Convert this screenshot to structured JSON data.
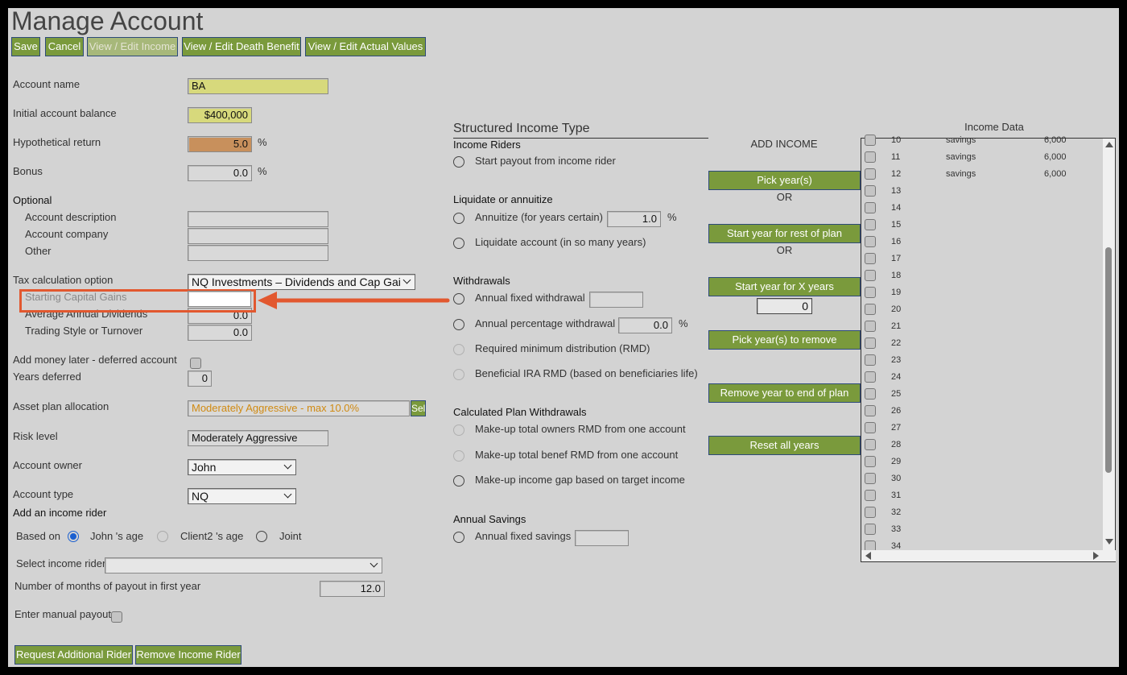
{
  "header": {
    "title": "Manage Account"
  },
  "toolbar": [
    "Save",
    "Cancel",
    "View / Edit Income",
    "View / Edit Death Benefit",
    "View / Edit Actual Values"
  ],
  "account": {
    "fields": [
      {
        "label": "Account name",
        "value": "BA"
      },
      {
        "label": "Initial account balance",
        "value": "$400,000"
      },
      {
        "label": "Hypothetical return",
        "value": "5.0",
        "unit": "%"
      },
      {
        "label": "Bonus",
        "value": "0.0",
        "unit": "%"
      },
      {
        "label": "Optional"
      },
      {
        "label": "Account description"
      },
      {
        "label": "Account company"
      },
      {
        "label": "Other"
      },
      {
        "label": "Tax calculation option",
        "value": "NQ Investments – Dividends and Cap Gai"
      },
      {
        "label": "Starting Capital Gains"
      },
      {
        "label": "Average Annual Dividends",
        "value": "0.0"
      },
      {
        "label": "Trading Style or Turnover",
        "value": "0.0"
      },
      {
        "label": "Add money later - deferred account"
      },
      {
        "label": "Years deferred",
        "value": "0"
      },
      {
        "label": "Asset plan allocation",
        "value": "Moderately Aggressive - max 10.0%",
        "button": "Sel"
      },
      {
        "label": "Risk level",
        "value": "Moderately Aggressive"
      },
      {
        "label": "Account owner",
        "value": "John"
      },
      {
        "label": "Account type",
        "value": "NQ"
      }
    ]
  },
  "income_rider": {
    "title": "Add an income rider",
    "based_on": "Based on",
    "options": [
      "John 's age",
      "Client2 's age",
      "Joint"
    ],
    "select_label": "Select income rider",
    "months_label": "Number of months of payout in first year",
    "months_value": "12.0",
    "manual_label": "Enter manual payout",
    "buttons": [
      "Request Additional Rider",
      "Remove Income Rider"
    ]
  },
  "structured": {
    "title": "Structured Income Type",
    "groups": [
      {
        "heading": "Income Riders",
        "options": [
          {
            "label": "Start payout from income rider"
          }
        ]
      },
      {
        "heading": "Liquidate or annuitize",
        "options": [
          {
            "label": "Annuitize (for years certain)",
            "value": "1.0",
            "unit": "%"
          },
          {
            "label": "Liquidate account (in so many years)"
          }
        ]
      },
      {
        "heading": "Withdrawals",
        "options": [
          {
            "label": "Annual fixed withdrawal"
          },
          {
            "label": "Annual percentage withdrawal",
            "value": "0.0",
            "unit": "%"
          },
          {
            "label": "Required minimum distribution (RMD)"
          },
          {
            "label": "Beneficial IRA RMD (based on beneficiaries life)"
          }
        ]
      },
      {
        "heading": "Calculated Plan Withdrawals",
        "options": [
          {
            "label": "Make-up total owners RMD from one account"
          },
          {
            "label": "Make-up total benef RMD from one account"
          },
          {
            "label": "Make-up income gap based on target income"
          }
        ]
      },
      {
        "heading": "Annual Savings",
        "options": [
          {
            "label": "Annual fixed savings"
          }
        ]
      }
    ]
  },
  "add_income": {
    "title": "ADD INCOME",
    "items": [
      "Pick year(s)",
      "OR",
      "Start year for rest of plan",
      "OR",
      "Start year for X years",
      "Pick year(s) to remove",
      "Remove year to end of plan",
      "Reset all years"
    ],
    "years_value": "0"
  },
  "income_data": {
    "title": "Income Data",
    "rows": [
      [
        "10",
        "savings",
        "6,000"
      ],
      [
        "11",
        "savings",
        "6,000"
      ],
      [
        "12",
        "savings",
        "6,000"
      ],
      [
        "13"
      ],
      [
        "14"
      ],
      [
        "15"
      ],
      [
        "16"
      ],
      [
        "17"
      ],
      [
        "18"
      ],
      [
        "19"
      ],
      [
        "20"
      ],
      [
        "21"
      ],
      [
        "22"
      ],
      [
        "23"
      ],
      [
        "24"
      ],
      [
        "25"
      ],
      [
        "26"
      ],
      [
        "27"
      ],
      [
        "28"
      ],
      [
        "29"
      ],
      [
        "30"
      ],
      [
        "31"
      ],
      [
        "32"
      ],
      [
        "33"
      ],
      [
        "34"
      ]
    ]
  }
}
